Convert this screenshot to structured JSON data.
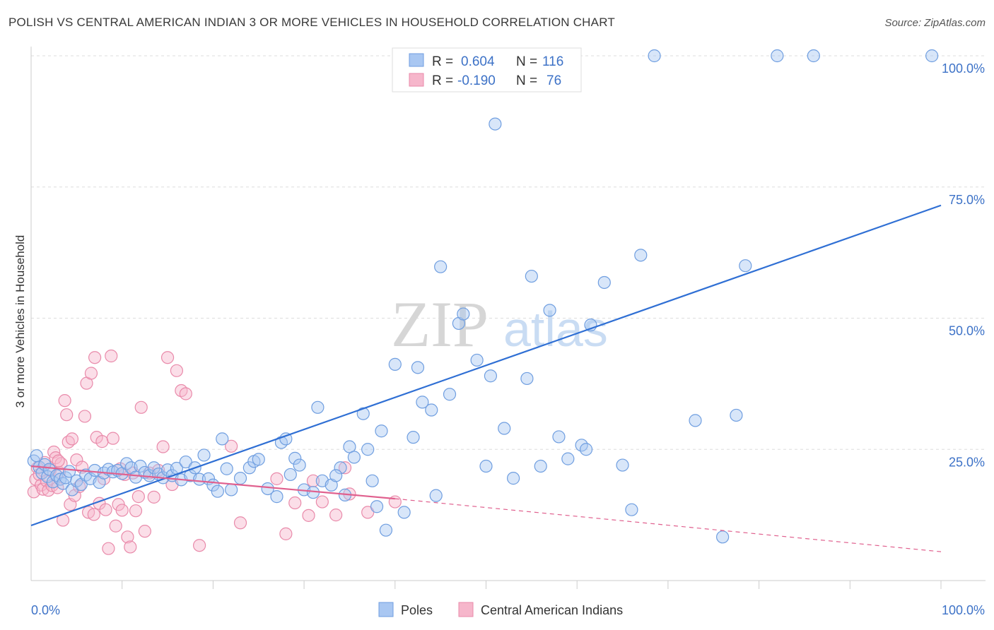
{
  "title": "POLISH VS CENTRAL AMERICAN INDIAN 3 OR MORE VEHICLES IN HOUSEHOLD CORRELATION CHART",
  "source": "Source: ZipAtlas.com",
  "watermark": {
    "zip": "ZIP",
    "atlas": "atlas"
  },
  "legend": {
    "rows": [
      {
        "r_label": "R =",
        "r_value": "0.604",
        "n_label": "N =",
        "n_value": "116",
        "color": "#a9c7f2"
      },
      {
        "r_label": "R =",
        "r_value": "-0.190",
        "n_label": "N =",
        "n_value": "76",
        "color": "#f6b6cb"
      }
    ]
  },
  "bottom_legend": [
    "Poles",
    "Central American Indians"
  ],
  "colors": {
    "blue_fill": "#a9c7f2",
    "blue_stroke": "#6f9ee0",
    "blue_line": "#2f6fd4",
    "pink_fill": "#f6b6cb",
    "pink_stroke": "#e98aaa",
    "pink_line": "#e0608e",
    "grid": "#dddddd",
    "axis_text": "#3d72c7"
  },
  "chart_data": {
    "type": "scatter",
    "title": "POLISH VS CENTRAL AMERICAN INDIAN 3 OR MORE VEHICLES IN HOUSEHOLD CORRELATION CHART",
    "xlabel": "",
    "ylabel": "3 or more Vehicles in Household",
    "xlim": [
      0,
      100
    ],
    "ylim": [
      0,
      100
    ],
    "x_tick_labels": [
      "0.0%",
      "100.0%"
    ],
    "y_tick_labels": [
      "25.0%",
      "50.0%",
      "75.0%",
      "100.0%"
    ],
    "y_ticks": [
      25,
      50,
      75,
      100
    ],
    "grid": true,
    "legend_position": "top-center",
    "series": [
      {
        "name": "Poles",
        "color": "#a9c7f2",
        "trend": {
          "x": [
            0,
            100
          ],
          "y": [
            10.5,
            71.5
          ]
        },
        "points": [
          [
            0.3,
            22.8
          ],
          [
            0.6,
            23.8
          ],
          [
            0.9,
            21.6
          ],
          [
            1.2,
            20.5
          ],
          [
            1.5,
            22.1
          ],
          [
            1.8,
            19.8
          ],
          [
            2.0,
            21.2
          ],
          [
            2.4,
            18.8
          ],
          [
            2.8,
            20.0
          ],
          [
            3.2,
            19.3
          ],
          [
            3.5,
            18.5
          ],
          [
            3.8,
            19.6
          ],
          [
            4.2,
            20.8
          ],
          [
            4.5,
            17.3
          ],
          [
            5.0,
            19.0
          ],
          [
            5.5,
            18.3
          ],
          [
            6.0,
            20.1
          ],
          [
            6.5,
            19.4
          ],
          [
            7.0,
            21.0
          ],
          [
            7.5,
            18.7
          ],
          [
            8.0,
            20.5
          ],
          [
            8.5,
            21.2
          ],
          [
            9.0,
            20.7
          ],
          [
            9.5,
            21.0
          ],
          [
            10.0,
            20.4
          ],
          [
            10.5,
            22.3
          ],
          [
            11.0,
            21.5
          ],
          [
            11.5,
            19.7
          ],
          [
            12.0,
            21.8
          ],
          [
            12.5,
            20.6
          ],
          [
            13.0,
            20.0
          ],
          [
            13.5,
            21.5
          ],
          [
            14.0,
            20.3
          ],
          [
            14.5,
            19.6
          ],
          [
            15.0,
            21.1
          ],
          [
            15.5,
            20.0
          ],
          [
            16.0,
            21.4
          ],
          [
            16.5,
            19.2
          ],
          [
            17.0,
            22.6
          ],
          [
            17.5,
            20.0
          ],
          [
            18.0,
            21.5
          ],
          [
            18.5,
            19.3
          ],
          [
            19.0,
            23.9
          ],
          [
            19.5,
            19.4
          ],
          [
            20.0,
            18.2
          ],
          [
            20.5,
            17.0
          ],
          [
            21.0,
            27.0
          ],
          [
            21.5,
            21.3
          ],
          [
            22.0,
            17.3
          ],
          [
            23.0,
            19.5
          ],
          [
            24.0,
            21.5
          ],
          [
            24.5,
            22.7
          ],
          [
            25.0,
            23.1
          ],
          [
            26.0,
            17.5
          ],
          [
            27.0,
            16.0
          ],
          [
            27.5,
            26.3
          ],
          [
            28.0,
            27.0
          ],
          [
            28.5,
            20.2
          ],
          [
            29.0,
            23.3
          ],
          [
            30.0,
            17.3
          ],
          [
            31.0,
            16.8
          ],
          [
            31.5,
            33.0
          ],
          [
            32.0,
            19.0
          ],
          [
            33.0,
            18.2
          ],
          [
            34.0,
            21.5
          ],
          [
            34.5,
            16.3
          ],
          [
            35.0,
            25.5
          ],
          [
            35.5,
            23.5
          ],
          [
            36.5,
            31.8
          ],
          [
            37.0,
            25.0
          ],
          [
            37.5,
            19.0
          ],
          [
            38.0,
            14.1
          ],
          [
            38.5,
            28.5
          ],
          [
            39.0,
            9.6
          ],
          [
            40.0,
            41.2
          ],
          [
            41.0,
            13.0
          ],
          [
            42.0,
            27.3
          ],
          [
            42.5,
            40.6
          ],
          [
            43.0,
            34.0
          ],
          [
            44.0,
            32.5
          ],
          [
            44.5,
            16.2
          ],
          [
            45.0,
            59.8
          ],
          [
            46.0,
            35.5
          ],
          [
            47.0,
            49.0
          ],
          [
            47.5,
            50.8
          ],
          [
            49.0,
            42.0
          ],
          [
            50.0,
            21.8
          ],
          [
            50.5,
            39.0
          ],
          [
            51.0,
            87.0
          ],
          [
            52.0,
            29.0
          ],
          [
            53.0,
            19.5
          ],
          [
            54.5,
            38.5
          ],
          [
            55.0,
            58.0
          ],
          [
            56.0,
            21.8
          ],
          [
            57.0,
            51.5
          ],
          [
            58.0,
            27.4
          ],
          [
            59.0,
            23.2
          ],
          [
            60.5,
            25.8
          ],
          [
            61.0,
            25.0
          ],
          [
            61.5,
            48.7
          ],
          [
            63.0,
            56.8
          ],
          [
            65.0,
            22.0
          ],
          [
            66.0,
            13.5
          ],
          [
            67.0,
            62.0
          ],
          [
            68.5,
            100.0
          ],
          [
            73.0,
            30.5
          ],
          [
            76.0,
            8.3
          ],
          [
            77.5,
            31.5
          ],
          [
            78.5,
            60.0
          ],
          [
            82.0,
            100.0
          ],
          [
            86.0,
            100.0
          ],
          [
            99.0,
            100.0
          ],
          [
            45.3,
            100.0
          ],
          [
            52.0,
            100.0
          ],
          [
            29.5,
            22.0
          ],
          [
            33.5,
            20.0
          ]
        ]
      },
      {
        "name": "Central American Indians",
        "color": "#f6b6cb",
        "trend": {
          "x": [
            0,
            40
          ],
          "y": [
            21.8,
            15.6
          ]
        },
        "trend_dashed": {
          "x": [
            40,
            100
          ],
          "y": [
            15.6,
            5.5
          ]
        },
        "points": [
          [
            0.3,
            16.9
          ],
          [
            0.5,
            19.3
          ],
          [
            0.7,
            21.5
          ],
          [
            0.9,
            20.2
          ],
          [
            1.1,
            18.2
          ],
          [
            1.3,
            17.4
          ],
          [
            1.5,
            22.5
          ],
          [
            1.7,
            19.0
          ],
          [
            1.9,
            17.2
          ],
          [
            2.1,
            21.0
          ],
          [
            2.3,
            18.1
          ],
          [
            2.5,
            24.5
          ],
          [
            2.7,
            23.4
          ],
          [
            2.9,
            17.7
          ],
          [
            3.1,
            20.6
          ],
          [
            3.3,
            22.3
          ],
          [
            3.5,
            11.5
          ],
          [
            3.7,
            34.3
          ],
          [
            3.9,
            31.6
          ],
          [
            4.1,
            26.4
          ],
          [
            4.3,
            14.5
          ],
          [
            4.5,
            27.0
          ],
          [
            4.8,
            16.2
          ],
          [
            5.0,
            23.0
          ],
          [
            5.3,
            17.9
          ],
          [
            5.6,
            21.6
          ],
          [
            5.9,
            31.3
          ],
          [
            6.1,
            37.6
          ],
          [
            6.3,
            13.0
          ],
          [
            6.6,
            39.5
          ],
          [
            6.9,
            12.6
          ],
          [
            7.0,
            42.5
          ],
          [
            7.2,
            27.3
          ],
          [
            7.5,
            14.7
          ],
          [
            7.8,
            26.5
          ],
          [
            8.0,
            19.4
          ],
          [
            8.2,
            13.5
          ],
          [
            8.5,
            6.1
          ],
          [
            8.8,
            42.8
          ],
          [
            9.0,
            27.1
          ],
          [
            9.3,
            10.4
          ],
          [
            9.6,
            14.5
          ],
          [
            10.0,
            13.4
          ],
          [
            10.3,
            20.2
          ],
          [
            10.6,
            8.3
          ],
          [
            10.9,
            6.4
          ],
          [
            11.2,
            20.5
          ],
          [
            11.5,
            13.3
          ],
          [
            11.8,
            16.0
          ],
          [
            12.1,
            33.0
          ],
          [
            12.5,
            9.4
          ],
          [
            13.0,
            20.5
          ],
          [
            13.5,
            15.9
          ],
          [
            14.0,
            21.0
          ],
          [
            14.5,
            25.5
          ],
          [
            15.0,
            42.5
          ],
          [
            15.5,
            18.3
          ],
          [
            16.0,
            40.0
          ],
          [
            16.5,
            36.2
          ],
          [
            17.0,
            35.6
          ],
          [
            18.5,
            6.7
          ],
          [
            22.0,
            25.6
          ],
          [
            23.0,
            11.0
          ],
          [
            27.0,
            19.4
          ],
          [
            28.0,
            8.9
          ],
          [
            29.0,
            14.8
          ],
          [
            30.5,
            12.4
          ],
          [
            31.0,
            19.0
          ],
          [
            32.0,
            15.0
          ],
          [
            33.5,
            12.5
          ],
          [
            34.5,
            21.5
          ],
          [
            35.0,
            16.5
          ],
          [
            37.0,
            13.0
          ],
          [
            40.0,
            15.0
          ],
          [
            3.0,
            22.8
          ],
          [
            9.8,
            21.3
          ]
        ]
      }
    ]
  }
}
